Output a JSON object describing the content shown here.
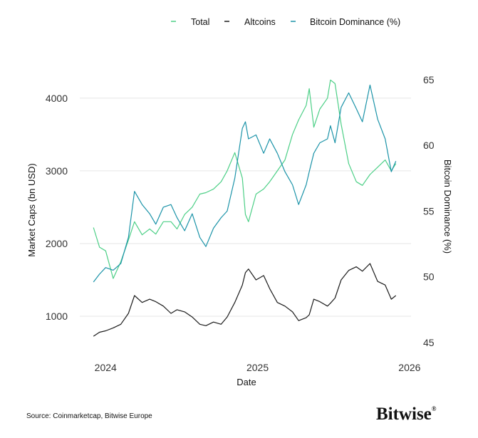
{
  "chart_data": {
    "type": "line",
    "xlabel": "Date",
    "ylabel": "Market Caps (bn USD)",
    "y2label": "Bitcoin Dominance (%)",
    "xlim": [
      2023.83,
      2026.01
    ],
    "ylim": [
      550,
      4370
    ],
    "y2lim": [
      44.5,
      65.65
    ],
    "x_ticks": [
      2024,
      2025,
      2026
    ],
    "y_ticks": [
      1000,
      2000,
      3000,
      4000
    ],
    "y2_ticks": [
      45,
      50,
      55,
      60,
      65
    ],
    "grid": "horizontal",
    "legend_position": "top-right",
    "x": [
      2023.92,
      2023.96,
      2024.0,
      2024.05,
      2024.1,
      2024.15,
      2024.19,
      2024.24,
      2024.29,
      2024.33,
      2024.38,
      2024.43,
      2024.47,
      2024.52,
      2024.57,
      2024.62,
      2024.66,
      2024.71,
      2024.76,
      2024.8,
      2024.85,
      2024.9,
      2024.92,
      2024.94,
      2024.99,
      2025.04,
      2025.08,
      2025.13,
      2025.18,
      2025.23,
      2025.27,
      2025.32,
      2025.34,
      2025.37,
      2025.41,
      2025.46,
      2025.48,
      2025.51,
      2025.55,
      2025.6,
      2025.65,
      2025.69,
      2025.74,
      2025.79,
      2025.84,
      2025.88,
      2025.91
    ],
    "series": [
      {
        "name": "Total",
        "axis": "left",
        "color": "#4ccf86",
        "values": [
          2220,
          1950,
          1900,
          1520,
          1750,
          2050,
          2300,
          2120,
          2200,
          2130,
          2300,
          2300,
          2200,
          2400,
          2500,
          2680,
          2700,
          2750,
          2850,
          3000,
          3250,
          2900,
          2400,
          2300,
          2680,
          2750,
          2850,
          3000,
          3150,
          3500,
          3700,
          3900,
          4130,
          3600,
          3850,
          4000,
          4250,
          4200,
          3640,
          3100,
          2850,
          2800,
          2950,
          3050,
          3150,
          3000,
          3100
        ]
      },
      {
        "name": "Altcoins",
        "axis": "left",
        "color": "#1c1c1c",
        "values": [
          725,
          780,
          800,
          840,
          890,
          1040,
          1285,
          1190,
          1235,
          1200,
          1140,
          1040,
          1090,
          1060,
          990,
          890,
          870,
          920,
          890,
          990,
          1190,
          1430,
          1600,
          1650,
          1500,
          1560,
          1380,
          1190,
          1140,
          1060,
          940,
          980,
          1020,
          1235,
          1200,
          1140,
          1180,
          1250,
          1500,
          1630,
          1680,
          1620,
          1725,
          1480,
          1430,
          1235,
          1285
        ]
      },
      {
        "name": "Bitcoin Dominance (%)",
        "axis": "right",
        "color": "#1b93a8",
        "values": [
          49.6,
          50.2,
          50.7,
          50.5,
          51.0,
          53.0,
          56.5,
          55.5,
          54.8,
          54.0,
          55.3,
          55.5,
          54.5,
          53.5,
          54.8,
          53.0,
          52.3,
          53.7,
          54.5,
          55.0,
          57.5,
          61.3,
          61.8,
          60.5,
          60.8,
          59.4,
          60.5,
          59.4,
          58.0,
          57.0,
          55.5,
          57.0,
          58.0,
          59.4,
          60.2,
          60.5,
          61.5,
          60.2,
          62.9,
          64.0,
          62.8,
          61.8,
          64.6,
          62.0,
          60.5,
          58.0,
          58.8
        ]
      }
    ]
  },
  "legend": [
    {
      "label": "Total",
      "color": "#4ccf86"
    },
    {
      "label": "Altcoins",
      "color": "#1c1c1c"
    },
    {
      "label": "Bitcoin Dominance (%)",
      "color": "#1b93a8"
    }
  ],
  "footer": {
    "source": "Source: Coinmarketcap, Bitwise Europe",
    "logo": "Bitwise®"
  },
  "colors": {
    "grid": "#e6e6e6",
    "total": "#4ccf86",
    "altcoins": "#1c1c1c",
    "dominance": "#1b93a8"
  }
}
